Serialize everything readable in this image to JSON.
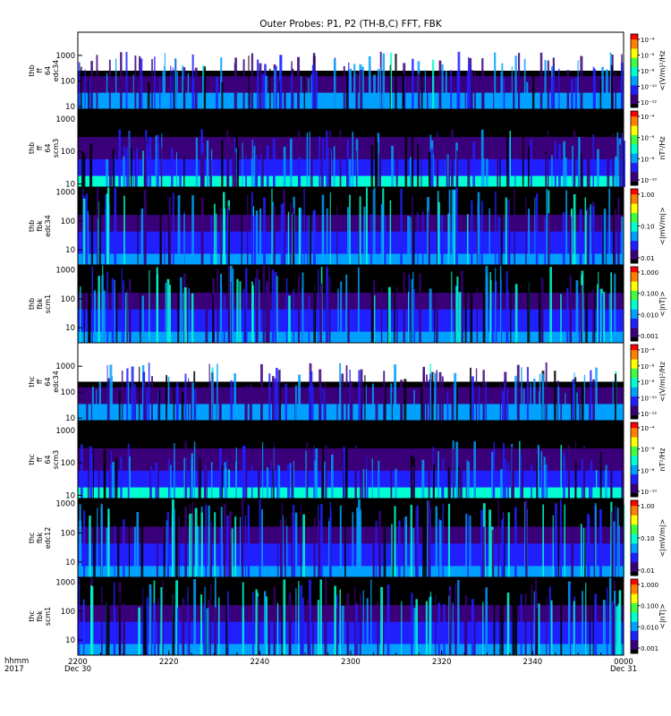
{
  "chart_data": {
    "type": "heatmap",
    "title": "Outer Probes: P1, P2 (TH-B,C) FFT, FBK",
    "x": {
      "ticks": [
        "2200",
        "2220",
        "2240",
        "2300",
        "2320",
        "2340",
        "0000"
      ],
      "range": [
        "2017-12-30 22:00",
        "2017-12-31 00:00"
      ],
      "label_line1": "hhmm",
      "label_line2": "2017",
      "start_date": "Dec 30",
      "end_date": "Dec 31"
    },
    "panels": [
      {
        "name": "thb-ff-64-edc34",
        "ylabel": [
          "thb",
          "ff",
          "64",
          "edc34"
        ],
        "yscale": "log",
        "ylim": [
          8,
          8000
        ],
        "yticks": [
          "10",
          "100",
          "1000"
        ],
        "cbar_type": "ff-e",
        "cbar_ticks": [
          "10⁻⁴",
          "10⁻⁶",
          "10⁻⁸",
          "10⁻¹⁰",
          "10⁻¹²"
        ],
        "cbar_label": "<(V/m)²/Hz"
      },
      {
        "name": "thb-ff-64-scm3",
        "ylabel": [
          "thb",
          "ff",
          "64",
          "scm3"
        ],
        "yscale": "log",
        "ylim": [
          8,
          2000
        ],
        "yticks": [
          "10",
          "100",
          "1000"
        ],
        "cbar_type": "ff-b",
        "cbar_ticks": [
          "10⁻⁴",
          "10⁻⁶",
          "10⁻⁸",
          "10⁻¹⁰"
        ],
        "cbar_label": "nT²/Hz"
      },
      {
        "name": "thb-fbk-edc34",
        "ylabel": [
          "thb",
          "fbk",
          "edc34"
        ],
        "yscale": "log",
        "ylim": [
          3,
          1500
        ],
        "yticks": [
          "10",
          "100",
          "1000"
        ],
        "cbar_type": "fbk-e",
        "cbar_ticks": [
          "1.00",
          "0.10",
          "0.01"
        ],
        "cbar_label": "<|mV/m|>"
      },
      {
        "name": "thb-fbk-scm1",
        "ylabel": [
          "thb",
          "fbk",
          "scm1"
        ],
        "yscale": "log",
        "ylim": [
          3,
          1500
        ],
        "yticks": [
          "10",
          "100",
          "1000"
        ],
        "cbar_type": "fbk-b",
        "cbar_ticks": [
          "1.000",
          "0.100",
          "0.010",
          "0.001"
        ],
        "cbar_label": "<|nT|>"
      },
      {
        "name": "thc-ff-64-edc34",
        "ylabel": [
          "thc",
          "ff",
          "64",
          "edc34"
        ],
        "yscale": "log",
        "ylim": [
          8,
          8000
        ],
        "yticks": [
          "10",
          "100",
          "1000"
        ],
        "cbar_type": "ff-e",
        "cbar_ticks": [
          "10⁻⁴",
          "10⁻⁶",
          "10⁻⁸",
          "10⁻¹⁰",
          "10⁻¹²"
        ],
        "cbar_label": "<(V/m)²/Hz"
      },
      {
        "name": "thc-ff-64-scm3",
        "ylabel": [
          "thc",
          "ff",
          "64",
          "scm3"
        ],
        "yscale": "log",
        "ylim": [
          8,
          2000
        ],
        "yticks": [
          "10",
          "100",
          "1000"
        ],
        "cbar_type": "ff-b",
        "cbar_ticks": [
          "10⁻⁴",
          "10⁻⁶",
          "10⁻⁸",
          "10⁻¹⁰"
        ],
        "cbar_label": "nT²/Hz"
      },
      {
        "name": "thc-fbk-edc12",
        "ylabel": [
          "thc",
          "fbk",
          "edc12"
        ],
        "yscale": "log",
        "ylim": [
          3,
          1500
        ],
        "yticks": [
          "10",
          "100",
          "1000"
        ],
        "cbar_type": "fbk-e",
        "cbar_ticks": [
          "1.00",
          "0.10",
          "0.01"
        ],
        "cbar_label": "<|mV/m|>"
      },
      {
        "name": "thc-fbk-scm1",
        "ylabel": [
          "thc",
          "fbk",
          "scm1"
        ],
        "yscale": "log",
        "ylim": [
          3,
          1500
        ],
        "yticks": [
          "10",
          "100",
          "1000"
        ],
        "cbar_type": "fbk-b",
        "cbar_ticks": [
          "1.000",
          "0.100",
          "0.010",
          "0.001"
        ],
        "cbar_label": "<|nT|>"
      }
    ],
    "colormap": [
      "#000000",
      "#3a007a",
      "#2020ff",
      "#00a0ff",
      "#00ffd0",
      "#40ff40",
      "#ffff00",
      "#ff8000",
      "#ff0000"
    ],
    "grid": false
  }
}
